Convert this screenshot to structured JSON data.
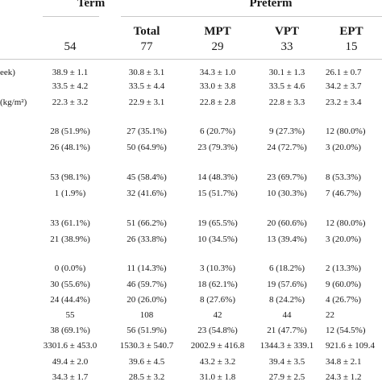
{
  "headers": {
    "term": "Term",
    "preterm": "Preterm",
    "total": "Total",
    "mpt": "MPT",
    "vpt": "VPT",
    "ept": "EPT"
  },
  "counts": {
    "term": "54",
    "total": "77",
    "mpt": "29",
    "vpt": "33",
    "ept": "15"
  },
  "row_labels": [
    "eek)",
    "(kg/m²)"
  ],
  "rows": [
    [
      "38.9 ± 1.1",
      "30.8 ± 3.1",
      "34.3 ± 1.0",
      "30.1 ± 1.3",
      "26.1 ± 0.7"
    ],
    [
      "33.5 ± 4.2",
      "33.5 ± 4.4",
      "33.0 ± 3.8",
      "33.5 ± 4.6",
      "34.2 ± 3.7"
    ],
    [
      "22.3 ± 3.2",
      "22.9 ± 3.1",
      "22.8 ± 2.8",
      "22.8 ± 3.3",
      "23.2 ± 3.4"
    ],
    [
      "28 (51.9%)",
      "27 (35.1%)",
      "6 (20.7%)",
      "9 (27.3%)",
      "12 (80.0%)"
    ],
    [
      "26 (48.1%)",
      "50 (64.9%)",
      "23 (79.3%)",
      "24 (72.7%)",
      "3 (20.0%)"
    ],
    [
      "53 (98.1%)",
      "45 (58.4%)",
      "14 (48.3%)",
      "23 (69.7%)",
      "8 (53.3%)"
    ],
    [
      "1 (1.9%)",
      "32 (41.6%)",
      "15 (51.7%)",
      "10 (30.3%)",
      "7 (46.7%)"
    ],
    [
      "33 (61.1%)",
      "51 (66.2%)",
      "19 (65.5%)",
      "20 (60.6%)",
      "12 (80.0%)"
    ],
    [
      "21 (38.9%)",
      "26 (33.8%)",
      "10 (34.5%)",
      "13 (39.4%)",
      "3 (20.0%)"
    ],
    [
      "0 (0.0%)",
      "11 (14.3%)",
      "3 (10.3%)",
      "6 (18.2%)",
      "2 (13.3%)"
    ],
    [
      "30 (55.6%)",
      "46 (59.7%)",
      "18 (62.1%)",
      "19 (57.6%)",
      "9 (60.0%)"
    ],
    [
      "24 (44.4%)",
      "20 (26.0%)",
      "8 (27.6%)",
      "8 (24.2%)",
      "4 (26.7%)"
    ],
    [
      "55",
      "108",
      "42",
      "44",
      "22"
    ],
    [
      "38 (69.1%)",
      "56 (51.9%)",
      "23 (54.8%)",
      "21 (47.7%)",
      "12 (54.5%)"
    ],
    [
      "3301.6 ± 453.0",
      "1530.3 ± 540.7",
      "2002.9 ± 416.8",
      "1344.3 ± 339.1",
      "921.6 ± 109.4"
    ],
    [
      "49.4 ± 2.0",
      "39.6 ± 4.5",
      "43.2 ± 3.2",
      "39.4 ± 3.5",
      "34.8 ± 2.1"
    ],
    [
      "34.3 ± 1.7",
      "28.5 ± 3.2",
      "31.0 ± 1.8",
      "27.9 ± 2.5",
      "24.3 ± 1.2"
    ]
  ]
}
